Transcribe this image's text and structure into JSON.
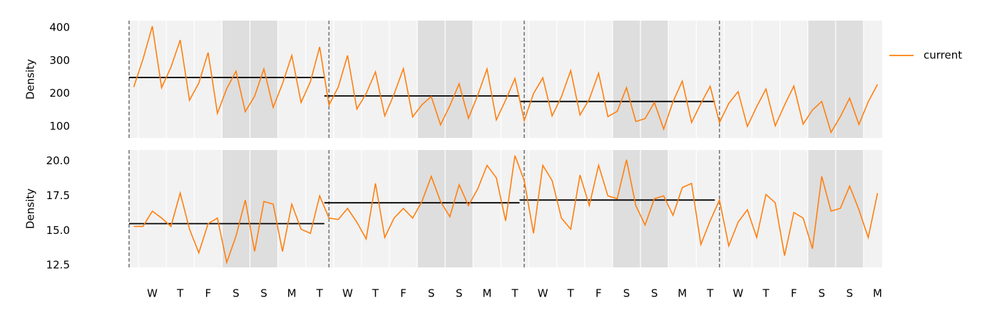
{
  "chart_data": [
    {
      "type": "line",
      "ylabel": "Density",
      "legend": "right",
      "x": [
        0,
        1,
        2,
        3,
        4,
        5,
        6,
        7,
        8,
        9,
        10,
        11,
        12,
        13,
        14,
        15,
        16,
        17,
        18,
        19,
        20,
        21,
        22,
        23,
        24,
        25,
        26,
        27,
        28,
        29,
        30,
        31,
        32,
        33,
        34,
        35,
        36,
        37,
        38,
        39,
        40,
        41,
        42,
        43,
        44,
        45,
        46,
        47,
        48,
        49,
        50,
        51,
        52,
        53,
        54,
        55,
        56,
        57,
        58,
        59,
        60,
        61,
        62,
        63,
        64,
        65,
        66,
        67,
        68,
        69,
        70,
        71,
        72,
        73,
        74,
        75,
        76,
        77,
        78,
        79,
        80
      ],
      "series": [
        {
          "name": "current",
          "color": "#ff7f0e",
          "values": [
            220,
            305,
            405,
            218,
            280,
            363,
            180,
            232,
            325,
            140,
            215,
            268,
            145,
            192,
            275,
            158,
            230,
            316,
            173,
            236,
            342,
            165,
            220,
            316,
            153,
            200,
            266,
            132,
            198,
            276,
            129,
            166,
            191,
            105,
            163,
            230,
            125,
            195,
            275,
            120,
            180,
            246,
            118,
            200,
            248,
            132,
            190,
            270,
            135,
            183,
            262,
            130,
            146,
            218,
            115,
            124,
            173,
            92,
            175,
            238,
            112,
            170,
            222,
            112,
            170,
            206,
            100,
            160,
            214,
            102,
            165,
            223,
            107,
            150,
            176,
            82,
            130,
            186,
            106,
            175,
            228
          ]
        }
      ],
      "xlim": [
        -0.5,
        80.5
      ],
      "ylim": [
        65,
        422
      ],
      "yticks": [
        100,
        200,
        300,
        400
      ],
      "vlines": [
        -0.5,
        21,
        42,
        63
      ],
      "means": [
        {
          "start": -0.5,
          "end": 20.5,
          "value": 249
        },
        {
          "start": 20.5,
          "end": 41.5,
          "value": 193
        },
        {
          "start": 41.5,
          "end": 62.5,
          "value": 176
        }
      ],
      "weekend_spans": [
        [
          9.5,
          15.5
        ],
        [
          30.5,
          36.5
        ],
        [
          51.5,
          57.5
        ],
        [
          72.5,
          78.5
        ]
      ]
    },
    {
      "type": "line",
      "ylabel": "Density",
      "x": [
        0,
        1,
        2,
        3,
        4,
        5,
        6,
        7,
        8,
        9,
        10,
        11,
        12,
        13,
        14,
        15,
        16,
        17,
        18,
        19,
        20,
        21,
        22,
        23,
        24,
        25,
        26,
        27,
        28,
        29,
        30,
        31,
        32,
        33,
        34,
        35,
        36,
        37,
        38,
        39,
        40,
        41,
        42,
        43,
        44,
        45,
        46,
        47,
        48,
        49,
        50,
        51,
        52,
        53,
        54,
        55,
        56,
        57,
        58,
        59,
        60,
        61,
        62,
        63,
        64,
        65,
        66,
        67,
        68,
        69,
        70,
        71,
        72,
        73,
        74,
        75,
        76,
        77,
        78,
        79,
        80
      ],
      "series": [
        {
          "color": "#ff7f0e",
          "values": [
            15.3,
            15.3,
            16.4,
            15.9,
            15.3,
            17.7,
            15.1,
            13.4,
            15.5,
            15.9,
            12.7,
            14.6,
            17.2,
            13.5,
            17.1,
            16.9,
            13.5,
            16.9,
            15.1,
            14.8,
            17.5,
            15.9,
            15.8,
            16.6,
            15.6,
            14.4,
            18.4,
            14.5,
            15.9,
            16.6,
            15.9,
            17.1,
            18.9,
            17.1,
            16.0,
            18.3,
            16.8,
            18.0,
            19.7,
            18.8,
            15.7,
            20.4,
            18.6,
            14.8,
            19.7,
            18.6,
            15.9,
            15.1,
            19.0,
            16.8,
            19.7,
            17.5,
            17.3,
            20.1,
            16.8,
            15.4,
            17.3,
            17.5,
            16.1,
            18.1,
            18.4,
            14.0,
            15.7,
            17.2,
            13.9,
            15.6,
            16.5,
            14.5,
            17.6,
            17.0,
            13.2,
            16.3,
            15.9,
            13.7,
            18.9,
            16.4,
            16.6,
            18.2,
            16.5,
            14.5,
            17.7
          ]
        }
      ],
      "xlim": [
        -0.5,
        80.5
      ],
      "ylim": [
        12.35,
        20.8
      ],
      "yticks": [
        12.5,
        {
          "value": 15,
          "label": "15.0"
        },
        17.5,
        {
          "value": 20,
          "label": "20.0"
        }
      ],
      "xticks": [
        {
          "value": 2,
          "label": "W"
        },
        {
          "value": 5,
          "label": "T"
        },
        {
          "value": 8,
          "label": "F"
        },
        {
          "value": 11,
          "label": "S"
        },
        {
          "value": 14,
          "label": "S"
        },
        {
          "value": 17,
          "label": "M"
        },
        {
          "value": 20,
          "label": "T"
        },
        {
          "value": 23,
          "label": "W"
        },
        {
          "value": 26,
          "label": "T"
        },
        {
          "value": 29,
          "label": "F"
        },
        {
          "value": 32,
          "label": "S"
        },
        {
          "value": 35,
          "label": "S"
        },
        {
          "value": 38,
          "label": "M"
        },
        {
          "value": 41,
          "label": "T"
        },
        {
          "value": 44,
          "label": "W"
        },
        {
          "value": 47,
          "label": "T"
        },
        {
          "value": 50,
          "label": "F"
        },
        {
          "value": 53,
          "label": "S"
        },
        {
          "value": 56,
          "label": "S"
        },
        {
          "value": 59,
          "label": "M"
        },
        {
          "value": 62,
          "label": "T"
        },
        {
          "value": 65,
          "label": "W"
        },
        {
          "value": 68,
          "label": "T"
        },
        {
          "value": 71,
          "label": "F"
        },
        {
          "value": 74,
          "label": "S"
        },
        {
          "value": 77,
          "label": "S"
        },
        {
          "value": 80,
          "label": "M"
        }
      ],
      "vlines": [
        -0.5,
        21,
        42,
        63
      ],
      "means": [
        {
          "start": -0.5,
          "end": 20.5,
          "value": 15.5
        },
        {
          "start": 20.5,
          "end": 41.5,
          "value": 17.0
        },
        {
          "start": 41.5,
          "end": 62.5,
          "value": 17.2
        }
      ],
      "weekend_spans": [
        [
          9.5,
          15.5
        ],
        [
          30.5,
          36.5
        ],
        [
          51.5,
          57.5
        ],
        [
          72.5,
          78.5
        ]
      ]
    }
  ]
}
